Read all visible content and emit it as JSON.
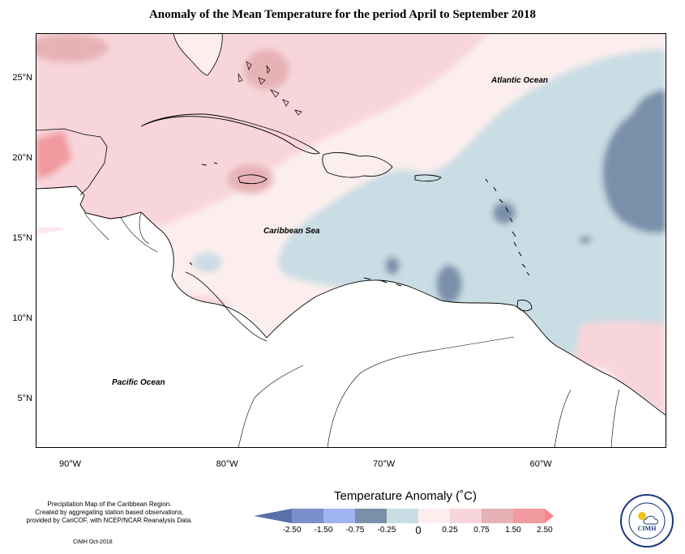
{
  "title": "Anomaly of the Mean Temperature for the period April to September 2018",
  "map": {
    "lat_labels": [
      {
        "label": "25°N",
        "lat": 25
      },
      {
        "label": "20°N",
        "lat": 20
      },
      {
        "label": "15°N",
        "lat": 15
      },
      {
        "label": "10°N",
        "lat": 10
      },
      {
        "label": "5°N",
        "lat": 5
      }
    ],
    "lon_labels": [
      {
        "label": "90°W",
        "lon": -90
      },
      {
        "label": "80°W",
        "lon": -80
      },
      {
        "label": "70°W",
        "lon": -70
      },
      {
        "label": "60°W",
        "lon": -60
      }
    ],
    "extent": {
      "lon_min": -92.2,
      "lon_max": -52.0,
      "lat_min": 2.0,
      "lat_max": 27.8
    },
    "region_labels": {
      "atlantic": "Atlantic Ocean",
      "caribbean": "Caribbean Sea",
      "pacific": "Pacific Ocean"
    }
  },
  "legend": {
    "title": "Temperature Anomaly (˚C)",
    "ticks": [
      "-2.50",
      "-1.50",
      "-0.75",
      "-0.25",
      "0",
      "0.25",
      "0.75",
      "1.50",
      "2.50"
    ],
    "colors": {
      "below_-2.50": "#5b6fa8",
      "-2.50_-1.50": "#7b8fcf",
      "-1.50_-0.75": "#9fb3f0",
      "-0.75_-0.25": "#7a90aa",
      "-0.25_0": "#c9dde4",
      "0_0.25": "#fdeeee",
      "0.25_0.75": "#f7d5da",
      "0.75_1.50": "#e7b2b6",
      "1.50_2.50": "#f19a9f",
      "above_2.50": "#f4858b"
    }
  },
  "credits": {
    "line1": "Precipitation Map of the Caribbean Region.",
    "line2": "Created by aggregating station based observations,",
    "line3": "provided by CariCOF, with NCEP/NCAR Reanalysis Data.",
    "issuer": "CIMH Oct-2018"
  },
  "logo": {
    "text": "CIMH"
  }
}
